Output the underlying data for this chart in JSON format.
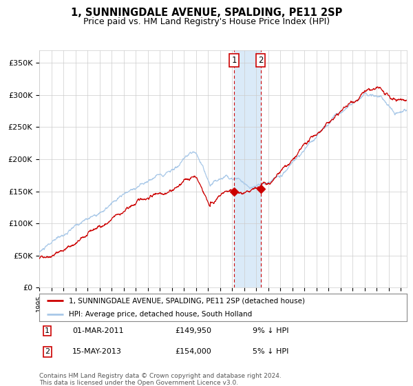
{
  "title": "1, SUNNINGDALE AVENUE, SPALDING, PE11 2SP",
  "subtitle": "Price paid vs. HM Land Registry's House Price Index (HPI)",
  "title_fontsize": 10.5,
  "subtitle_fontsize": 9,
  "ylim": [
    0,
    370000
  ],
  "yticks": [
    0,
    50000,
    100000,
    150000,
    200000,
    250000,
    300000,
    350000
  ],
  "ytick_labels": [
    "£0",
    "£50K",
    "£100K",
    "£150K",
    "£200K",
    "£250K",
    "£300K",
    "£350K"
  ],
  "hpi_color": "#a8c8e8",
  "price_color": "#cc0000",
  "marker_color": "#cc0000",
  "grid_color": "#cccccc",
  "bg_color": "#ffffff",
  "transaction1_date_num": 2011.17,
  "transaction2_date_num": 2013.37,
  "transaction1_price": 149950,
  "transaction2_price": 154000,
  "shade_color": "#daeaf8",
  "vline_color": "#cc0000",
  "legend_label_price": "1, SUNNINGDALE AVENUE, SPALDING, PE11 2SP (detached house)",
  "legend_label_hpi": "HPI: Average price, detached house, South Holland",
  "note1_label": "1",
  "note2_label": "2",
  "note1_date": "01-MAR-2011",
  "note1_price": "£149,950",
  "note1_hpi": "9% ↓ HPI",
  "note2_date": "15-MAY-2013",
  "note2_price": "£154,000",
  "note2_hpi": "5% ↓ HPI",
  "footer": "Contains HM Land Registry data © Crown copyright and database right 2024.\nThis data is licensed under the Open Government Licence v3.0.",
  "xstart": 1995.0,
  "xend": 2025.5
}
